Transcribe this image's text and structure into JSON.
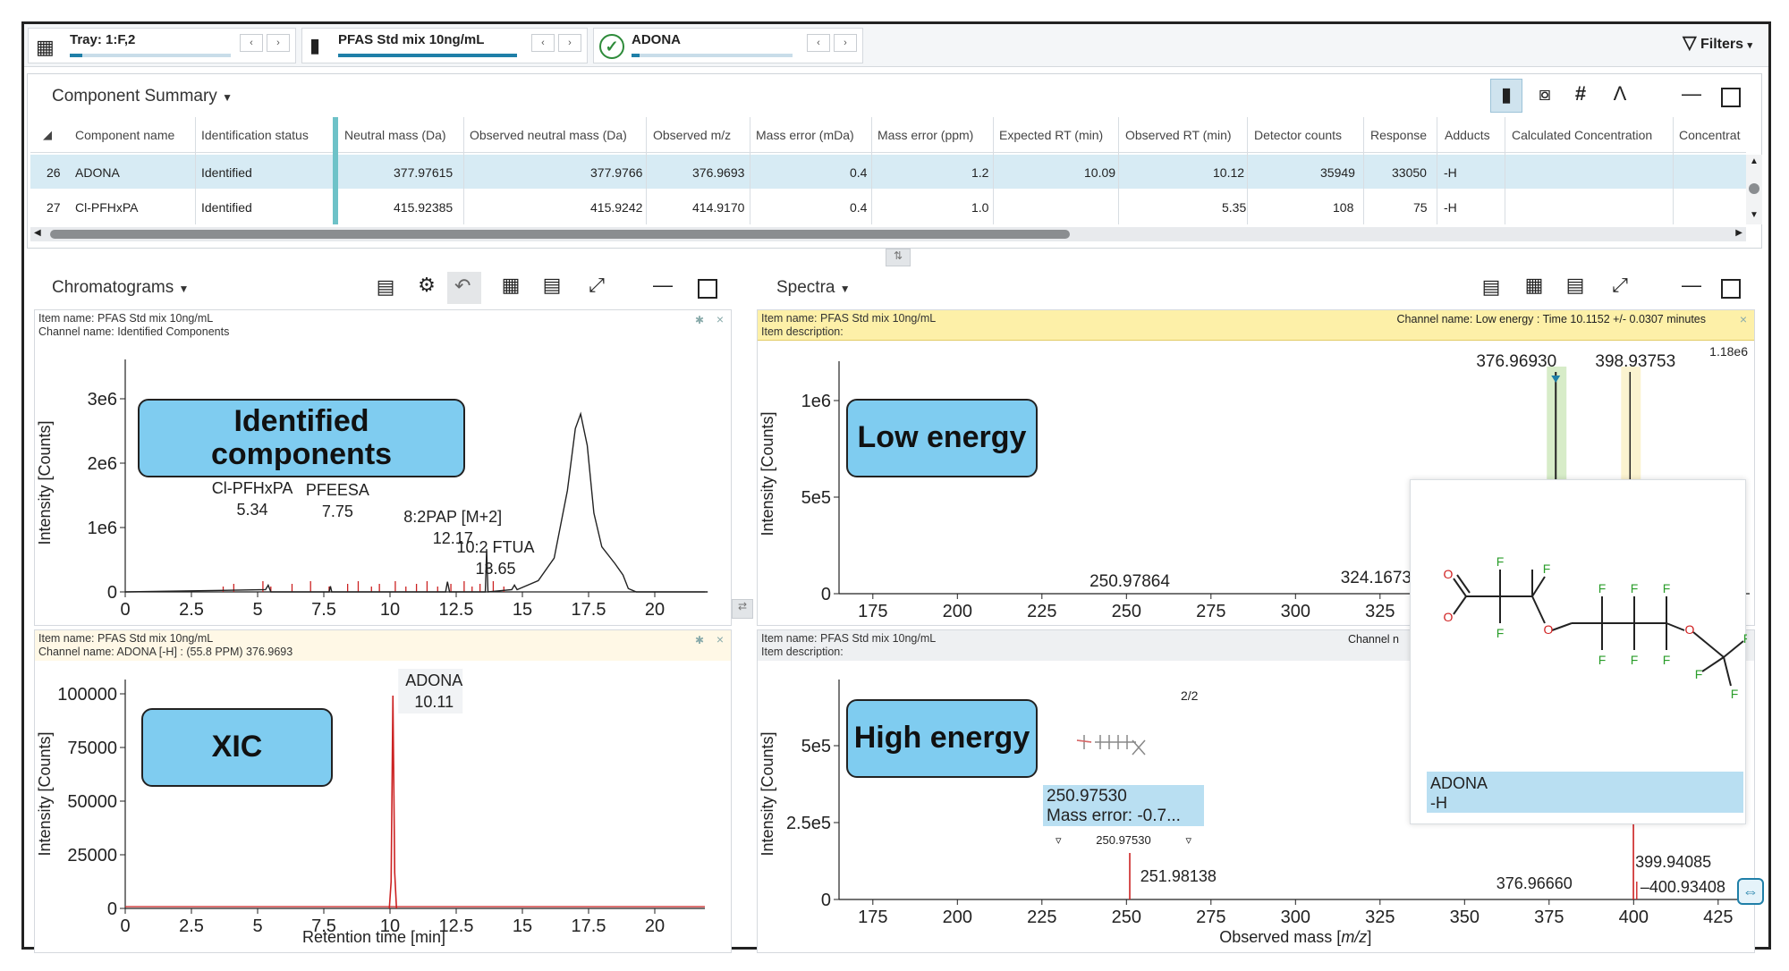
{
  "topbar": {
    "tray_label": "Tray: 1:F,2",
    "sample_label": "PFAS Std mix 10ng/mL",
    "component_label": "ADONA",
    "filters_label": "Filters",
    "tray_progress": 0.08,
    "sample_progress": 1.0,
    "component_progress": 0.05
  },
  "component_summary": {
    "title": "Component Summary",
    "columns": [
      "Component name",
      "Identification status",
      "Neutral mass (Da)",
      "Observed neutral mass (Da)",
      "Observed m/z",
      "Mass error (mDa)",
      "Mass error (ppm)",
      "Expected RT (min)",
      "Observed RT (min)",
      "Detector counts",
      "Response",
      "Adducts",
      "Calculated Concentration",
      "Concentrat"
    ],
    "rows": [
      {
        "idx": "26",
        "name": "ADONA",
        "status": "Identified",
        "neutral_mass": "377.97615",
        "obs_neutral_mass": "377.9766",
        "obs_mz": "376.9693",
        "mass_err_mda": "0.4",
        "mass_err_ppm": "1.2",
        "exp_rt": "10.09",
        "obs_rt": "10.12",
        "det_counts": "35949",
        "response": "33050",
        "adducts": "-H"
      },
      {
        "idx": "27",
        "name": "Cl-PFHxPA",
        "status": "Identified",
        "neutral_mass": "415.92385",
        "obs_neutral_mass": "415.9242",
        "obs_mz": "414.9170",
        "mass_err_mda": "0.4",
        "mass_err_ppm": "1.0",
        "exp_rt": "",
        "obs_rt": "5.35",
        "det_counts": "108",
        "response": "75",
        "adducts": "-H"
      }
    ]
  },
  "chromatograms": {
    "title": "Chromatograms",
    "top": {
      "item_name": "Item name: PFAS Std mix 10ng/mL",
      "channel_name": "Channel name: Identified Components",
      "callout": "Identified components",
      "ylabel": "Intensity [Counts]",
      "yticks": [
        "0",
        "1e6",
        "2e6",
        "3e6"
      ],
      "xticks": [
        "0",
        "2.5",
        "5",
        "7.5",
        "10",
        "12.5",
        "15",
        "17.5",
        "20"
      ],
      "annotations": [
        {
          "name": "Cl-PFHxPA",
          "rt": "5.34"
        },
        {
          "name": "PFEESA",
          "rt": "7.75"
        },
        {
          "name": "8:2PAP [M+2]",
          "rt": "12.17"
        },
        {
          "name": "10:2 FTUA",
          "rt": "13.65"
        }
      ]
    },
    "bottom": {
      "item_name": "Item name: PFAS Std mix 10ng/mL",
      "channel_name": "Channel name: ADONA [-H] : (55.8 PPM) 376.9693",
      "callout": "XIC",
      "ylabel": "Intensity [Counts]",
      "xlabel": "Retention time [min]",
      "yticks": [
        "0",
        "25000",
        "50000",
        "75000",
        "100000"
      ],
      "xticks": [
        "0",
        "2.5",
        "5",
        "7.5",
        "10",
        "12.5",
        "15",
        "17.5",
        "20"
      ],
      "peak_label": "ADONA",
      "peak_rt": "10.11"
    }
  },
  "spectra": {
    "title": "Spectra",
    "top": {
      "item_name": "Item name: PFAS Std mix 10ng/mL",
      "item_desc": "Item description:",
      "channel_name": "Channel name: Low energy : Time 10.1152 +/- 0.0307 minutes",
      "scale": "1.18e6",
      "callout": "Low energy",
      "ylabel": "Intensity [Counts]",
      "yticks": [
        "0",
        "5e5",
        "1e6"
      ],
      "xticks": [
        "175",
        "200",
        "225",
        "250",
        "275",
        "300",
        "325"
      ],
      "peaks": [
        "376.96930",
        "398.93753",
        "250.97864",
        "324.16730"
      ]
    },
    "bottom": {
      "item_name": "Item name: PFAS Std mix 10ng/mL",
      "item_desc": "Item description:",
      "channel_name": "Channel n",
      "callout": "High energy",
      "ylabel": "Intensity [Counts]",
      "xlabel_prefix": "Observed mass [",
      "xlabel_unit": "m/z",
      "xlabel_suffix": "]",
      "yticks": [
        "0",
        "2.5e5",
        "5e5"
      ],
      "xticks": [
        "175",
        "200",
        "225",
        "250",
        "275",
        "300",
        "325",
        "350",
        "375",
        "400",
        "425"
      ],
      "page": "2/2",
      "tooltip_mass": "250.97530",
      "tooltip_error": "Mass error: -0.7...",
      "tooltip_small": "250.97530",
      "peaks": [
        "251.98138",
        "376.96660",
        "399.94085",
        "400.93408"
      ]
    },
    "structure_label_1": "ADONA",
    "structure_label_2": "-H"
  },
  "colors": {
    "accent": "#1f7fa8",
    "selected_row": "#d7ebf4",
    "callout": "#7fccf0",
    "trace_red": "#cc2222",
    "info_yellow": "#fff4d0"
  }
}
